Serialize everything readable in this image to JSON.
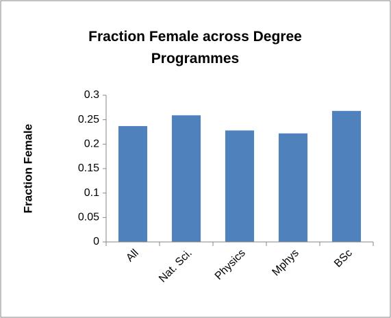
{
  "chart_data": {
    "type": "bar",
    "title": "Fraction Female across Degree Programmes",
    "y_label": "Fraction Female",
    "categories": [
      "All",
      "Nat. Sci.",
      "Physics",
      "Mphys",
      "BSc"
    ],
    "values": [
      0.237,
      0.259,
      0.228,
      0.222,
      0.268
    ],
    "color": "#4f81bd",
    "ylim": [
      0,
      0.3
    ],
    "yticks": [
      0,
      0.05,
      0.1,
      0.15,
      0.2,
      0.25,
      0.3
    ],
    "grid": false
  }
}
